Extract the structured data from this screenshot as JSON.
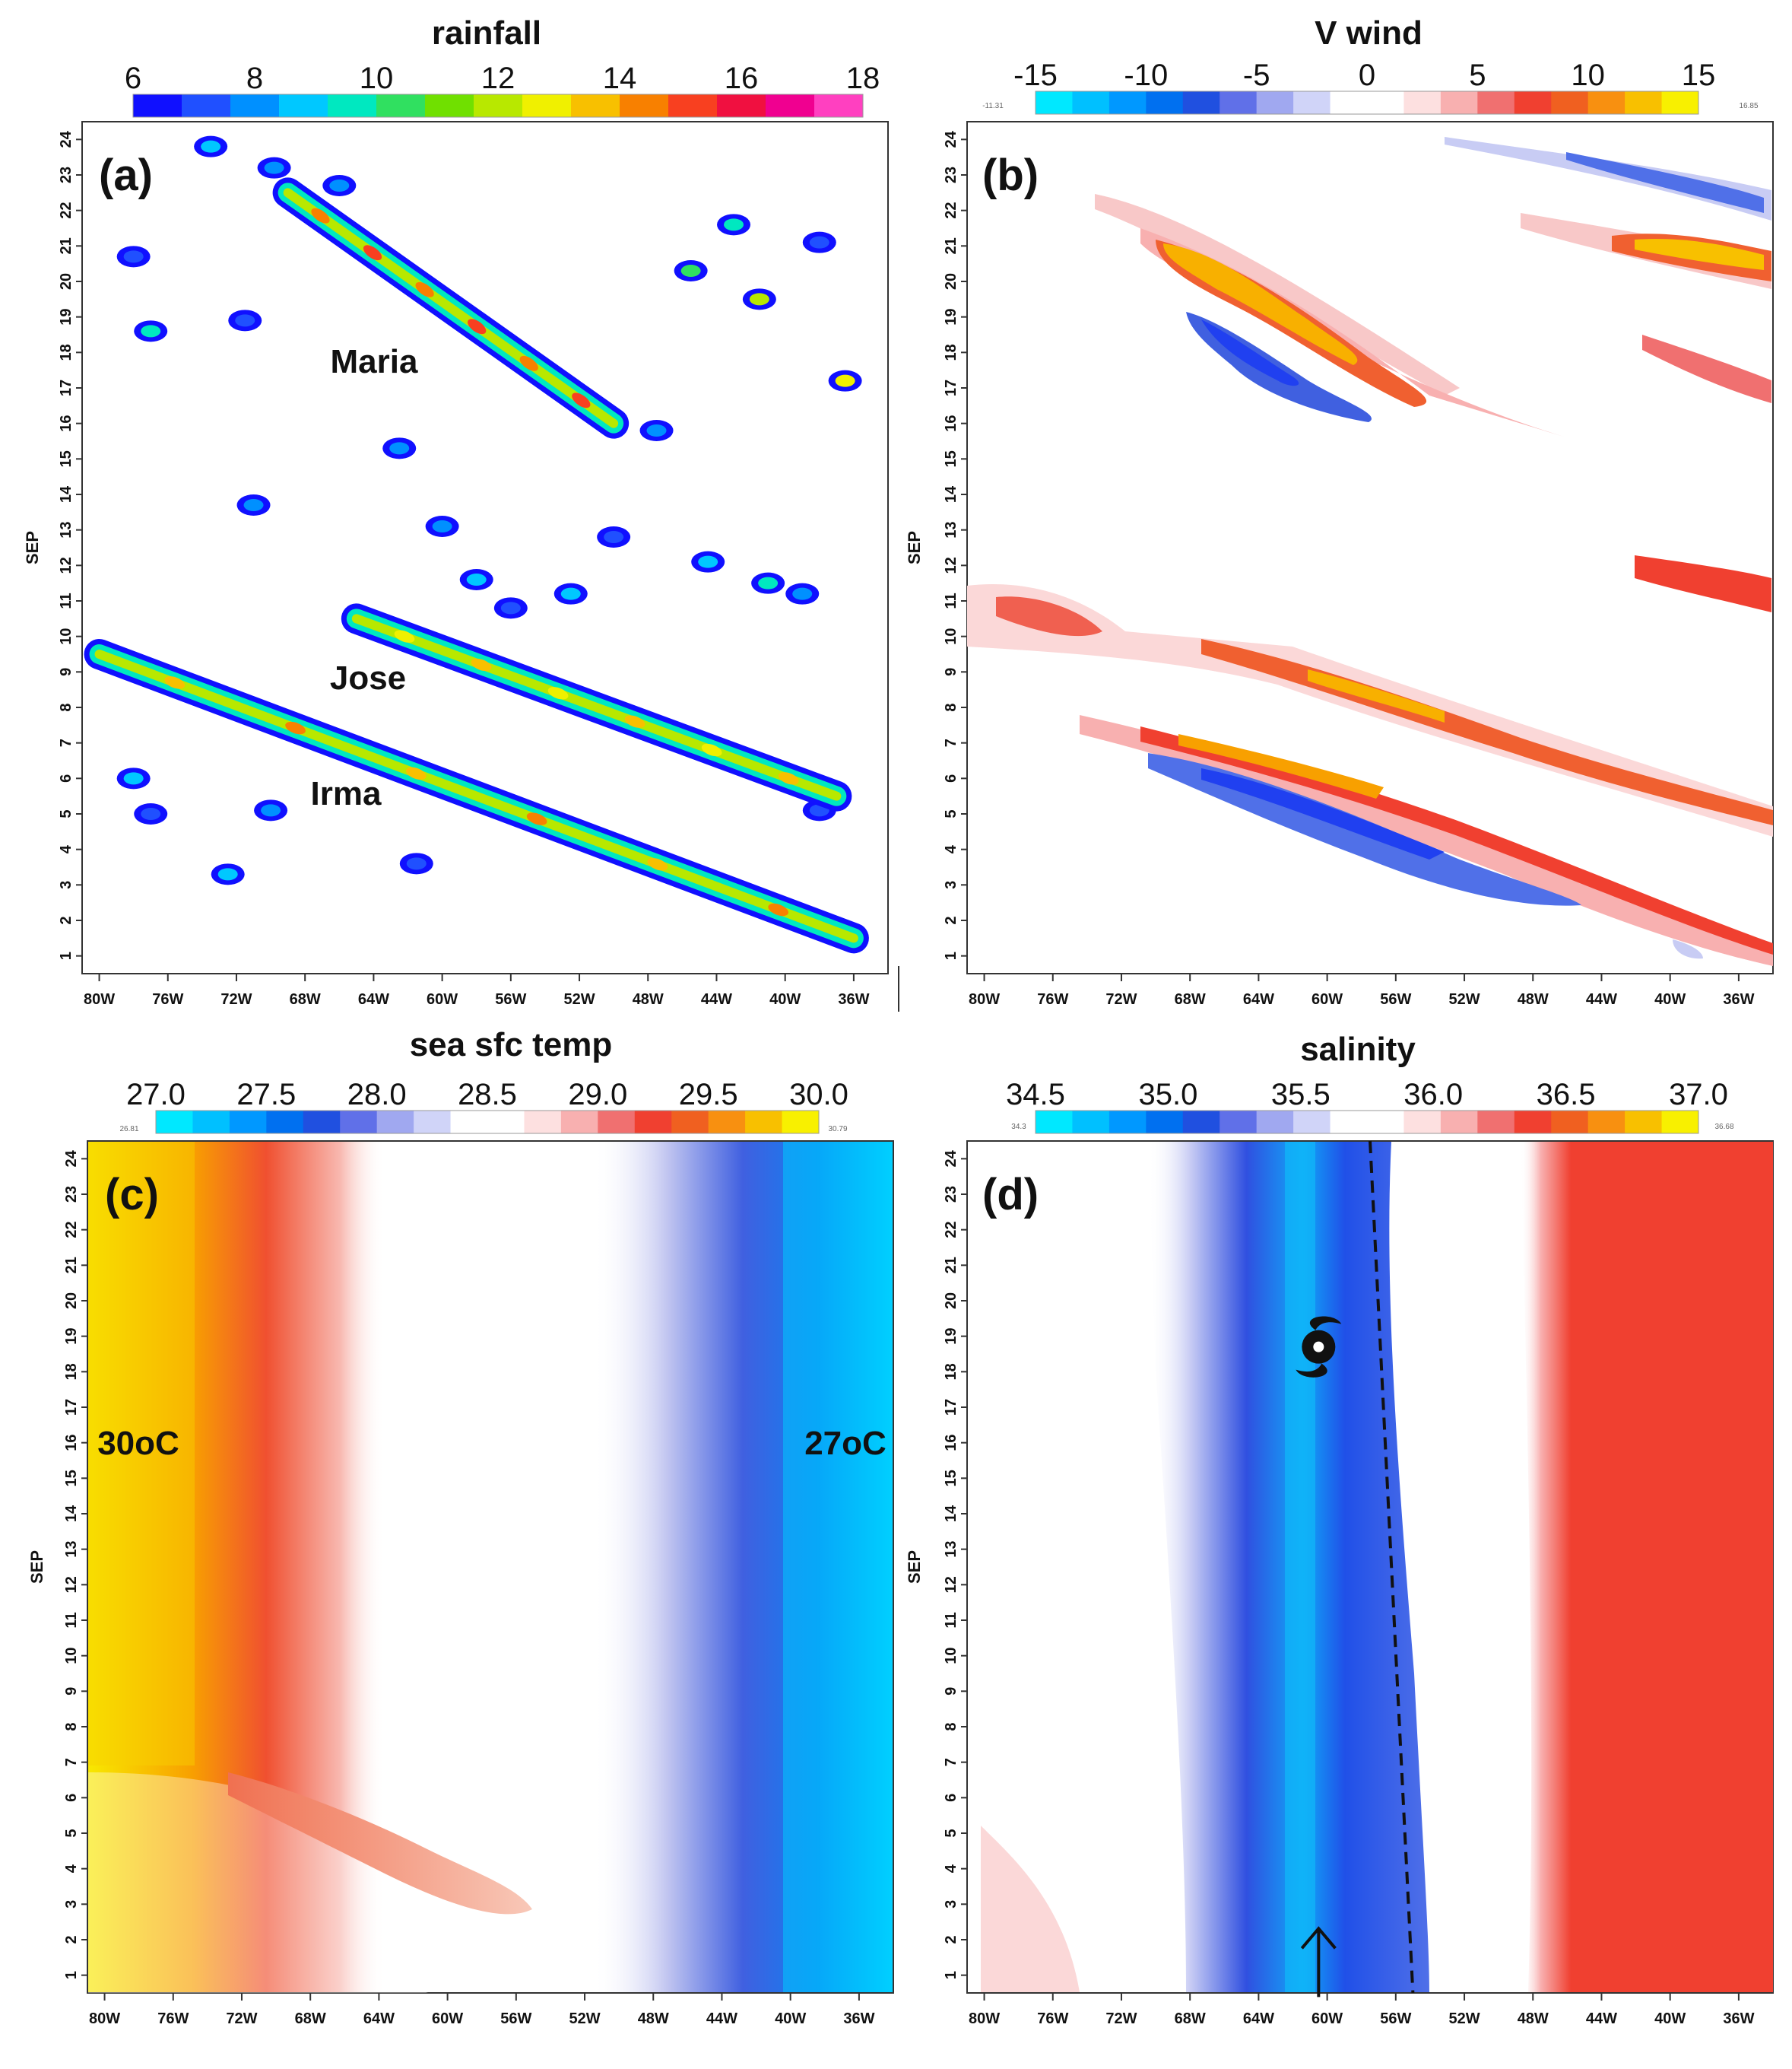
{
  "figure": {
    "type": "four-panel Hovmoller (longitude-time) diagram",
    "month_label": "SEP"
  },
  "chart_data": [
    {
      "panel": "(a)",
      "type": "heatmap",
      "title": "rainfall",
      "colorbar": {
        "ticks": [
          "6",
          "8",
          "10",
          "12",
          "14",
          "16",
          "18"
        ],
        "end_labels": [],
        "colors": [
          "#1010ff",
          "#2050ff",
          "#0090ff",
          "#00c8ff",
          "#00e8c0",
          "#30e060",
          "#70e000",
          "#b8e800",
          "#f0f000",
          "#f8c000",
          "#f88000",
          "#f84020",
          "#f01040",
          "#f00090",
          "#ff40c0"
        ]
      },
      "y_label": "SEP",
      "y_ticks": [
        "1",
        "2",
        "3",
        "4",
        "5",
        "6",
        "7",
        "8",
        "9",
        "10",
        "11",
        "12",
        "13",
        "14",
        "15",
        "16",
        "17",
        "18",
        "19",
        "20",
        "21",
        "22",
        "23",
        "24"
      ],
      "x_ticks": [
        "80W",
        "76W",
        "72W",
        "68W",
        "64W",
        "60W",
        "56W",
        "52W",
        "48W",
        "44W",
        "40W",
        "36W"
      ],
      "annotations": [
        "Maria",
        "Jose",
        "Irma"
      ],
      "storm_tracks": [
        {
          "name": "Maria",
          "start": {
            "lon": -69,
            "day": 22.5
          },
          "end": {
            "lon": -50,
            "day": 16
          },
          "value": 15
        },
        {
          "name": "Jose",
          "start": {
            "lon": -65,
            "day": 10.5
          },
          "end": {
            "lon": -37,
            "day": 5.5
          },
          "value": 13
        },
        {
          "name": "Irma",
          "start": {
            "lon": -80,
            "day": 9.5
          },
          "end": {
            "lon": -36,
            "day": 1.5
          },
          "value": 14
        }
      ]
    },
    {
      "panel": "(b)",
      "type": "heatmap",
      "title": "V wind",
      "colorbar": {
        "ticks": [
          "-15",
          "-10",
          "-5",
          "0",
          "5",
          "10",
          "15"
        ],
        "end_labels": [
          "-11.31",
          "16.85"
        ],
        "colors": [
          "#00e8ff",
          "#00c0ff",
          "#0098ff",
          "#0070f0",
          "#2050e0",
          "#6070e8",
          "#a0a8f0",
          "#d0d4f8",
          "#ffffff",
          "#ffffff",
          "#fde0e0",
          "#f8b0b0",
          "#f07070",
          "#f04030",
          "#f06020",
          "#f89010",
          "#f8c000",
          "#f8f000"
        ]
      },
      "y_label": "SEP",
      "y_ticks": [
        "1",
        "2",
        "3",
        "4",
        "5",
        "6",
        "7",
        "8",
        "9",
        "10",
        "11",
        "12",
        "13",
        "14",
        "15",
        "16",
        "17",
        "18",
        "19",
        "20",
        "21",
        "22",
        "23",
        "24"
      ],
      "x_ticks": [
        "80W",
        "76W",
        "72W",
        "68W",
        "64W",
        "60W",
        "56W",
        "52W",
        "48W",
        "44W",
        "40W",
        "36W"
      ],
      "annotations": []
    },
    {
      "panel": "(c)",
      "type": "heatmap",
      "title": "sea sfc temp",
      "colorbar": {
        "ticks": [
          "27.0",
          "27.5",
          "28.0",
          "28.5",
          "29.0",
          "29.5",
          "30.0"
        ],
        "end_labels": [
          "26.81",
          "30.79"
        ],
        "colors": [
          "#00e8ff",
          "#00c0ff",
          "#0098ff",
          "#0070f0",
          "#2050e0",
          "#6070e8",
          "#a0a8f0",
          "#d0d4f8",
          "#ffffff",
          "#ffffff",
          "#fde0e0",
          "#f8b0b0",
          "#f07070",
          "#f04030",
          "#f06020",
          "#f89010",
          "#f8c000",
          "#f8f000"
        ]
      },
      "y_label": "SEP",
      "y_ticks": [
        "1",
        "2",
        "3",
        "4",
        "5",
        "6",
        "7",
        "8",
        "9",
        "10",
        "11",
        "12",
        "13",
        "14",
        "15",
        "16",
        "17",
        "18",
        "19",
        "20",
        "21",
        "22",
        "23",
        "24"
      ],
      "x_ticks": [
        "80W",
        "76W",
        "72W",
        "68W",
        "64W",
        "60W",
        "56W",
        "52W",
        "48W",
        "44W",
        "40W",
        "36W"
      ],
      "annotations": [
        "30oC",
        "27oC"
      ]
    },
    {
      "panel": "(d)",
      "type": "heatmap",
      "title": "salinity",
      "colorbar": {
        "ticks": [
          "34.5",
          "35.0",
          "35.5",
          "36.0",
          "36.5",
          "37.0"
        ],
        "end_labels": [
          "34.3",
          "36.68"
        ],
        "colors": [
          "#00e8ff",
          "#00c0ff",
          "#0098ff",
          "#0070f0",
          "#2050e0",
          "#6070e8",
          "#a0a8f0",
          "#d0d4f8",
          "#ffffff",
          "#ffffff",
          "#fde0e0",
          "#f8b0b0",
          "#f07070",
          "#f04030",
          "#f06020",
          "#f89010",
          "#f8c000",
          "#f8f000"
        ]
      },
      "y_label": "SEP",
      "y_ticks": [
        "1",
        "2",
        "3",
        "4",
        "5",
        "6",
        "7",
        "8",
        "9",
        "10",
        "11",
        "12",
        "13",
        "14",
        "15",
        "16",
        "17",
        "18",
        "19",
        "20",
        "21",
        "22",
        "23",
        "24"
      ],
      "x_ticks": [
        "80W",
        "76W",
        "72W",
        "68W",
        "64W",
        "60W",
        "56W",
        "52W",
        "48W",
        "44W",
        "40W",
        "36W"
      ],
      "annotations": [],
      "front_line": {
        "start": {
          "lon": -57.5,
          "day": 24.5
        },
        "end": {
          "lon": -55,
          "day": 0.5
        },
        "style": "dashed"
      },
      "markers": [
        {
          "kind": "hurricane-symbol",
          "lon": -60.5,
          "day": 18.7
        },
        {
          "kind": "up-arrow",
          "lon": -60.5,
          "day": 1.5
        }
      ]
    }
  ]
}
